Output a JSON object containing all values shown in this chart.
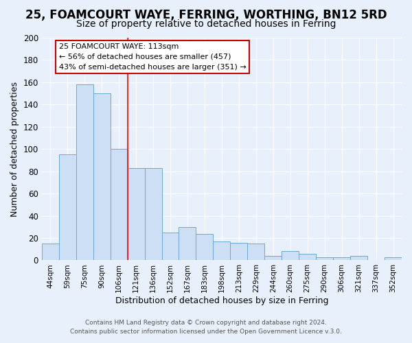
{
  "title": "25, FOAMCOURT WAYE, FERRING, WORTHING, BN12 5RD",
  "subtitle": "Size of property relative to detached houses in Ferring",
  "xlabel": "Distribution of detached houses by size in Ferring",
  "ylabel": "Number of detached properties",
  "categories": [
    "44sqm",
    "59sqm",
    "75sqm",
    "90sqm",
    "106sqm",
    "121sqm",
    "136sqm",
    "152sqm",
    "167sqm",
    "183sqm",
    "198sqm",
    "213sqm",
    "229sqm",
    "244sqm",
    "260sqm",
    "275sqm",
    "290sqm",
    "306sqm",
    "321sqm",
    "337sqm",
    "352sqm"
  ],
  "values": [
    15,
    95,
    158,
    150,
    100,
    83,
    83,
    25,
    30,
    24,
    17,
    16,
    15,
    4,
    8,
    6,
    3,
    3,
    4,
    0,
    3
  ],
  "bar_color": "#ccdff5",
  "bar_edge_color": "#6aaad4",
  "red_line_x": 4.5,
  "annotation_title": "25 FOAMCOURT WAYE: 113sqm",
  "annotation_line1": "← 56% of detached houses are smaller (457)",
  "annotation_line2": "43% of semi-detached houses are larger (351) →",
  "annotation_box_color": "#ffffff",
  "annotation_box_edge": "#cc0000",
  "ylim": [
    0,
    200
  ],
  "yticks": [
    0,
    20,
    40,
    60,
    80,
    100,
    120,
    140,
    160,
    180,
    200
  ],
  "footer1": "Contains HM Land Registry data © Crown copyright and database right 2024.",
  "footer2": "Contains public sector information licensed under the Open Government Licence v.3.0.",
  "bg_color": "#e8f0fb",
  "title_fontsize": 12,
  "subtitle_fontsize": 10
}
